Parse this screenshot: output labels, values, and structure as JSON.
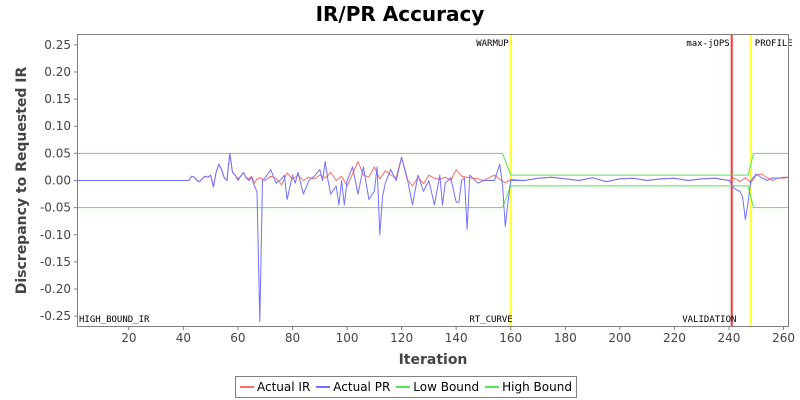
{
  "chart_data": {
    "type": "line",
    "title": "IR/PR Accuracy",
    "xlabel": "Iteration",
    "ylabel": "Discrepancy to Requested IR",
    "xlim": [
      1,
      262
    ],
    "ylim": [
      -0.27,
      0.27
    ],
    "xticks": [
      20,
      40,
      60,
      80,
      100,
      120,
      140,
      160,
      180,
      200,
      220,
      240,
      260
    ],
    "yticks": [
      0.25,
      0.2,
      0.15,
      0.1,
      0.05,
      0.0,
      -0.05,
      -0.1,
      -0.15,
      -0.2,
      -0.25
    ],
    "ytick_labels": [
      "0.25",
      "0.20",
      "0.15",
      "0.10",
      "0.05",
      "0.00",
      "-0.05",
      "-0.10",
      "-0.15",
      "-0.20",
      "-0.25"
    ],
    "grid": false,
    "legend_position": "bottom-center",
    "colors": {
      "actual_ir": "#ff6b6b",
      "actual_pr": "#7070ff",
      "bound": "#55e655",
      "marker_yellow": "#ffff33",
      "marker_red": "#ff3333"
    },
    "series": [
      {
        "name": "Actual IR",
        "x": [
          1,
          42,
          43,
          44,
          45,
          46,
          47,
          48,
          49,
          50,
          51,
          52,
          53,
          54,
          55,
          56,
          57,
          58,
          59,
          60,
          61,
          62,
          63,
          64,
          65,
          66,
          67,
          68,
          70,
          72,
          74,
          76,
          78,
          80,
          82,
          84,
          86,
          88,
          90,
          92,
          94,
          96,
          98,
          100,
          102,
          104,
          106,
          108,
          110,
          112,
          114,
          116,
          118,
          120,
          122,
          124,
          126,
          128,
          130,
          132,
          134,
          136,
          138,
          140,
          142,
          144,
          146,
          148,
          150,
          152,
          154,
          156,
          158,
          160,
          165,
          170,
          175,
          180,
          185,
          190,
          195,
          200,
          205,
          210,
          215,
          220,
          225,
          230,
          235,
          240,
          242,
          244,
          246,
          248,
          250,
          252,
          254,
          256,
          258,
          260,
          262
        ],
        "y": [
          0.0,
          0.0,
          0.008,
          0.006,
          0.0,
          -0.002,
          0.004,
          0.008,
          0.006,
          0.01,
          -0.012,
          0.015,
          0.03,
          0.02,
          0.005,
          0.0,
          0.05,
          0.015,
          0.01,
          0.003,
          0.008,
          0.015,
          0.006,
          0.003,
          0.008,
          -0.005,
          0.003,
          0.005,
          0.0,
          0.008,
          0.004,
          -0.008,
          0.014,
          0.002,
          0.01,
          0.0,
          0.006,
          0.003,
          0.01,
          0.005,
          0.015,
          0.0,
          0.008,
          -0.01,
          0.012,
          0.035,
          0.01,
          0.006,
          0.025,
          0.003,
          0.018,
          0.01,
          0.005,
          0.043,
          0.002,
          -0.01,
          0.006,
          -0.006,
          0.01,
          0.004,
          0.002,
          0.006,
          0.0,
          0.02,
          0.008,
          0.006,
          0.004,
          0.003,
          0.0,
          0.005,
          0.01,
          0.002,
          -0.004,
          0.002,
          0.0,
          0.004,
          0.006,
          0.003,
          0.0,
          0.005,
          -0.002,
          0.003,
          0.004,
          0.0,
          0.003,
          0.004,
          0.0,
          0.003,
          0.004,
          0.0,
          0.004,
          -0.002,
          0.005,
          -0.004,
          0.01,
          0.012,
          0.005,
          0.0,
          0.005,
          0.004,
          0.006
        ]
      },
      {
        "name": "Actual PR",
        "x": [
          1,
          42,
          43,
          44,
          45,
          46,
          47,
          48,
          49,
          50,
          51,
          52,
          53,
          54,
          55,
          56,
          57,
          58,
          59,
          60,
          61,
          62,
          63,
          64,
          65,
          66,
          67,
          68,
          69,
          70,
          72,
          74,
          76,
          77,
          78,
          80,
          81,
          82,
          84,
          86,
          88,
          90,
          91,
          92,
          93,
          94,
          96,
          97,
          98,
          99,
          100,
          102,
          104,
          106,
          108,
          110,
          111,
          112,
          113,
          114,
          116,
          118,
          120,
          122,
          124,
          126,
          128,
          130,
          132,
          134,
          135,
          136,
          138,
          140,
          141,
          142,
          143,
          144,
          145,
          146,
          148,
          150,
          152,
          154,
          156,
          157,
          158,
          159,
          160,
          165,
          170,
          175,
          180,
          185,
          190,
          195,
          200,
          205,
          210,
          215,
          220,
          225,
          230,
          235,
          240,
          242,
          244,
          245,
          246,
          247,
          248,
          250,
          252,
          254,
          256,
          258,
          260,
          262
        ],
        "y": [
          0.0,
          0.0,
          0.008,
          0.006,
          0.0,
          -0.002,
          0.004,
          0.008,
          0.006,
          0.01,
          -0.012,
          0.015,
          0.03,
          0.02,
          0.005,
          0.0,
          0.05,
          0.015,
          0.01,
          0.0,
          0.008,
          0.015,
          0.005,
          0.0,
          0.006,
          -0.01,
          -0.02,
          -0.26,
          0.0,
          0.005,
          0.02,
          -0.005,
          0.003,
          0.01,
          -0.035,
          0.01,
          -0.005,
          0.015,
          -0.025,
          0.0,
          0.008,
          0.02,
          0.0,
          0.035,
          0.0,
          -0.025,
          -0.01,
          -0.045,
          0.0,
          -0.045,
          0.0,
          0.025,
          -0.025,
          0.025,
          -0.035,
          -0.02,
          0.025,
          -0.1,
          -0.03,
          -0.005,
          0.02,
          0.0,
          0.043,
          0.005,
          -0.045,
          0.01,
          -0.02,
          0.0,
          -0.045,
          0.01,
          -0.045,
          -0.005,
          0.005,
          -0.04,
          -0.04,
          0.0,
          0.005,
          -0.09,
          0.01,
          0.005,
          -0.005,
          0.0,
          0.0,
          0.0,
          0.03,
          -0.01,
          -0.085,
          -0.04,
          0.0,
          0.0,
          0.004,
          0.006,
          0.003,
          0.0,
          0.005,
          -0.002,
          0.003,
          0.004,
          0.0,
          0.003,
          0.004,
          0.0,
          0.003,
          0.004,
          0.0,
          -0.015,
          -0.02,
          -0.03,
          -0.072,
          -0.04,
          0.0,
          0.012,
          0.005,
          0.0,
          0.005,
          0.004,
          0.006,
          0.006
        ]
      },
      {
        "name": "Low Bound",
        "x": [
          1,
          157,
          160,
          247,
          249,
          262
        ],
        "y": [
          -0.05,
          -0.05,
          -0.01,
          -0.01,
          -0.05,
          -0.05
        ]
      },
      {
        "name": "High Bound",
        "x": [
          1,
          157,
          160,
          247,
          249,
          262
        ],
        "y": [
          0.05,
          0.05,
          0.01,
          0.01,
          0.05,
          0.05
        ]
      }
    ],
    "markers": [
      {
        "x": 160,
        "label": "WARMUP",
        "position": "top",
        "color": "yellow"
      },
      {
        "x": 160,
        "label": "RT_CURVE",
        "position": "bottom",
        "color": "yellow"
      },
      {
        "x": 241,
        "label": "max-jOPS",
        "position": "top",
        "color": "red"
      },
      {
        "x": 242,
        "label": "VALIDATION",
        "position": "bottom",
        "color": "none"
      },
      {
        "x": 248,
        "label": "PROFILE",
        "position": "top",
        "color": "yellow"
      },
      {
        "x": 1,
        "label": "HIGH_BOUND_IR",
        "position": "bottom-left",
        "color": "none"
      }
    ]
  }
}
